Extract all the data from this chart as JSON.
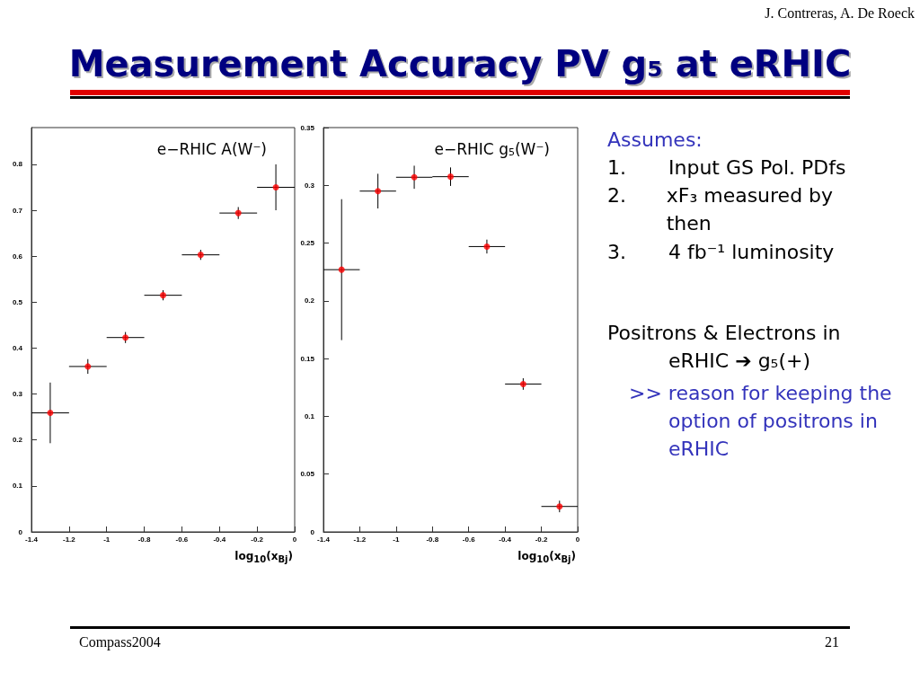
{
  "chart_data": [
    {
      "type": "scatter",
      "title": "e−RHIC A(W⁻)",
      "xlabel": "log$_{10}$(x$_{Bj}$)",
      "marker": "circle",
      "grid": false,
      "xlim": [
        -1.4,
        0
      ],
      "xticks": [
        -1.4,
        -1.2,
        -1,
        -0.8,
        -0.6,
        -0.4,
        -0.2,
        0
      ],
      "ylim": [
        0,
        0.88
      ],
      "yticks": [
        0,
        0.1,
        0.2,
        0.3,
        0.4,
        0.5,
        0.6,
        0.7,
        0.8
      ],
      "x": [
        -1.3,
        -1.1,
        -0.9,
        -0.7,
        -0.5,
        -0.3,
        -0.1
      ],
      "series": [
        {
          "color": "#ff0000",
          "values": [
            0.259,
            0.36,
            0.423,
            0.515,
            0.603,
            0.694,
            0.75
          ],
          "errors": [
            0.066,
            0.016,
            0.012,
            0.011,
            0.011,
            0.013,
            0.05
          ],
          "xerrors": [
            0.1,
            0.1,
            0.1,
            0.1,
            0.1,
            0.1,
            0.1
          ]
        }
      ]
    },
    {
      "type": "scatter",
      "title": "e−RHIC g$_{5}$(W⁻)",
      "xlabel": "log$_{10}$(x$_{Bj}$)",
      "marker": "circle",
      "grid": false,
      "xlim": [
        -1.4,
        0
      ],
      "xticks": [
        -1.4,
        -1.2,
        -1,
        -0.8,
        -0.6,
        -0.4,
        -0.2,
        0
      ],
      "ylim": [
        0,
        0.35
      ],
      "yticks": [
        0,
        0.05,
        0.1,
        0.15,
        0.2,
        0.25,
        0.3,
        0.35
      ],
      "x": [
        -1.3,
        -1.1,
        -0.9,
        -0.7,
        -0.5,
        -0.3,
        -0.1
      ],
      "series": [
        {
          "color": "#ff0000",
          "values": [
            0.227,
            0.295,
            0.307,
            0.3075,
            0.247,
            0.128,
            0.022
          ],
          "errors": [
            0.061,
            0.015,
            0.01,
            0.008,
            0.006,
            0.005,
            0.005
          ],
          "xerrors": [
            0.1,
            0.1,
            0.1,
            0.1,
            0.1,
            0.1,
            0.1
          ]
        }
      ]
    },
    {
      "type": "other",
      "title": "Measurement Accuracy PV g₅ at eRHIC",
      "annotations": [
        "J. Contreras, A. De Roeck",
        "Assumes:",
        "1. Input GS Pol. PDfs",
        "2. xF₃ measured by then",
        "3. 4 fb⁻¹ luminosity",
        "Positrons & Electrons in eRHIC ➔ g₅(+)",
        ">> reason for keeping the option of positrons in eRHIC",
        "Compass2004",
        "21"
      ]
    }
  ]
}
